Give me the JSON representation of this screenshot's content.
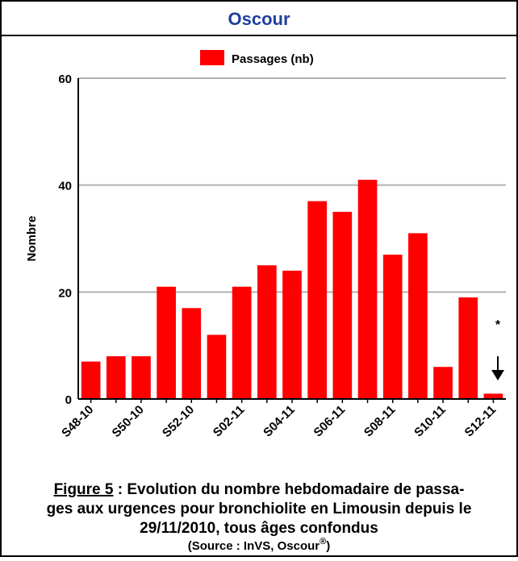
{
  "chart_data": {
    "type": "bar",
    "title": "Oscour",
    "categories": [
      "S48-10",
      null,
      "S50-10",
      null,
      "S52-10",
      null,
      "S02-11",
      null,
      "S04-11",
      null,
      "S06-11",
      null,
      "S08-11",
      null,
      "S10-11",
      null,
      "S12-11"
    ],
    "series": [
      {
        "name": "Passages (nb)",
        "color": "#ff0000",
        "values": [
          7,
          8,
          8,
          21,
          17,
          12,
          21,
          25,
          24,
          37,
          35,
          41,
          27,
          31,
          6,
          19,
          1
        ]
      }
    ],
    "ylabel": "Nombre",
    "ylim": [
      0,
      60
    ],
    "yticks": [
      0,
      20,
      40,
      60
    ],
    "grid": true,
    "annotation": "*",
    "caption": {
      "figure_label": "Figure 5",
      "lines": [
        " : Evolution du nombre hebdomadaire de passa-",
        "ges aux urgences pour bronchiolite en Limousin depuis le",
        "29/11/2010, tous âges confondus"
      ],
      "source": {
        "text": "(Source : InVS, Oscour",
        "superscript": "®",
        "end": ")"
      }
    }
  }
}
